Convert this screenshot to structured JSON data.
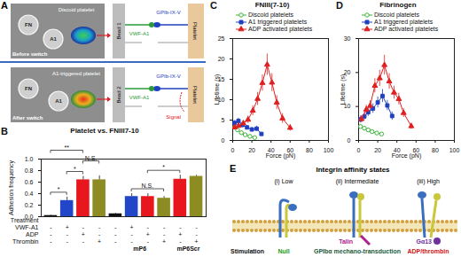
{
  "panels": {
    "A": {
      "panel_label": "A",
      "before": {
        "label": "Before switch",
        "beads": [
          "FN",
          "A1"
        ],
        "cell": "Discoid platelet",
        "schematic": {
          "bead": "Bead 1",
          "receptor": "GPIb-IX-V",
          "ligand": "VWF-A1",
          "cell": "Platelet"
        }
      },
      "after": {
        "label": "After switch",
        "beads": [
          "FN",
          "A1"
        ],
        "cell": "A1-triggered platelet",
        "schematic": {
          "bead": "Bead 2",
          "receptor": "GPIb-IX-V",
          "ligand": "VWF-A1",
          "cell": "Platelet",
          "signal": "Signal"
        }
      }
    },
    "E": {
      "panel_label": "E",
      "title": "Integrin affinity states",
      "stimulation_label": "Stimulation",
      "states": [
        {
          "label": "(i) Low",
          "stimulation": "Null",
          "color": "#1a9a1a"
        },
        {
          "label": "(ii) Intermediate",
          "stimulation": "GPIbα mechano-transduction",
          "color": "#1d5a3c",
          "adaptor": "Talin"
        },
        {
          "label": "(iii) High",
          "stimulation": "ADP/thrombin",
          "color": "#d01515",
          "adaptor": "Gα13"
        }
      ]
    }
  },
  "chart_data": [
    {
      "panel_label": "B",
      "type": "bar",
      "title": "Platelet vs. FNIII7-10",
      "ylabel": "Adhesion frequency",
      "categories": [
        null,
        null,
        null,
        null,
        null,
        null,
        null,
        null,
        null,
        null
      ],
      "values": [
        0.02,
        0.28,
        0.64,
        0.64,
        0.05,
        0.35,
        0.35,
        0.32,
        0.65,
        0.7
      ],
      "errors": [
        0.01,
        0.06,
        0.06,
        0.07,
        0.01,
        0.05,
        0.05,
        0.03,
        0.07,
        0.02
      ],
      "colors": [
        "#111111",
        "#2146c7",
        "#e8161d",
        "#8c8c23",
        "#111111",
        "#2146c7",
        "#e8161d",
        "#8c8c23",
        "#e8161d",
        "#8c8c23"
      ],
      "ylim": [
        0,
        1
      ],
      "yticks": [
        {
          "value": 0,
          "label": "0.0"
        },
        0.2,
        0.4,
        0.6,
        0.8,
        {
          "value": 1,
          "label": "1.0"
        }
      ],
      "grid": false,
      "treatment_header": "Treatment",
      "treatments": [
        {
          "name": "VWF-A1",
          "signs": [
            "-",
            "+",
            "-",
            "-",
            "-",
            "+",
            "-",
            "-",
            "-",
            "-"
          ]
        },
        {
          "name": "ADP",
          "signs": [
            "-",
            "-",
            "+",
            "-",
            "-",
            "-",
            "+",
            "-",
            "+",
            "-"
          ]
        },
        {
          "name": "Thrombin",
          "signs": [
            "-",
            "-",
            "-",
            "+",
            "-",
            "-",
            "-",
            "+",
            "-",
            "+"
          ]
        }
      ],
      "groups": [
        {
          "label": "mP6",
          "start": 4,
          "end": 7
        },
        {
          "label": "mP6Scr",
          "start": 8,
          "end": 9
        }
      ],
      "annotations": [
        {
          "text": "*",
          "bars": [
            0,
            1
          ]
        },
        {
          "text": "**",
          "bars": [
            0,
            2
          ]
        },
        {
          "text": "*",
          "bars": [
            1,
            2
          ]
        },
        {
          "text": "N.S.",
          "bars": [
            2,
            3
          ]
        },
        {
          "text": "N.S.",
          "bars": [
            5,
            7
          ]
        },
        {
          "text": "*",
          "bars": [
            6,
            8
          ]
        }
      ]
    },
    {
      "panel_label": "C",
      "type": "line",
      "title": "FNIII(7-10)",
      "xlabel": "Force (pN)",
      "ylabel": "Lifetime (s)",
      "xlim": [
        0,
        100
      ],
      "xticks": [
        0,
        20,
        40,
        60,
        80,
        100
      ],
      "ylim": [
        0,
        25
      ],
      "yticks": [
        0,
        5,
        10,
        15,
        20,
        25
      ],
      "grid": false,
      "legend": "top",
      "series": [
        {
          "name": "Discoid platelets",
          "color": "#3cb43c",
          "marker": "open_circle",
          "line_style": "solid",
          "x": [
            2,
            5,
            9,
            13,
            18,
            23
          ],
          "values": [
            3.3,
            2.6,
            1.9,
            1.4,
            1.0,
            0.7
          ],
          "errors": [
            0.4,
            0.3,
            0.3,
            0.2,
            0.2,
            0.2
          ]
        },
        {
          "name": "A1 triggered platelets",
          "color": "#2040c0",
          "marker": "square",
          "line_style": "solid",
          "x": [
            2,
            6,
            10,
            15,
            20,
            25,
            30
          ],
          "values": [
            4.3,
            4.8,
            3.8,
            3.2,
            2.7,
            2.9,
            1.6
          ],
          "errors": [
            0.6,
            0.7,
            0.6,
            0.5,
            0.5,
            0.6,
            0.4
          ]
        },
        {
          "name": "ADP activated platelets",
          "color": "#e02020",
          "marker": "triangle",
          "line_style": "solid",
          "x": [
            2,
            6,
            11,
            16,
            21,
            26,
            31,
            36,
            41,
            46,
            52,
            60
          ],
          "values": [
            3.2,
            3.6,
            4.2,
            5.1,
            7.3,
            10.2,
            14.1,
            18.6,
            14.2,
            9.3,
            5.4,
            3.1
          ],
          "errors": [
            0.5,
            0.6,
            0.7,
            0.9,
            1.2,
            1.6,
            2.0,
            2.6,
            2.2,
            1.7,
            1.2,
            0.8
          ]
        }
      ]
    },
    {
      "panel_label": "D",
      "type": "line",
      "title": "Fibrinogen",
      "xlabel": "Force (pN)",
      "ylabel": "Lifetime (s)",
      "xlim": [
        0,
        100
      ],
      "xticks": [
        0,
        20,
        40,
        60,
        80,
        100
      ],
      "ylim": [
        0,
        30
      ],
      "yticks": [
        0,
        10,
        20,
        30
      ],
      "grid": false,
      "legend": "top",
      "series": [
        {
          "name": "Discoid platelets",
          "color": "#3cb43c",
          "marker": "open_circle",
          "line_style": "solid",
          "x": [
            2,
            6,
            10,
            14,
            19,
            24
          ],
          "values": [
            4.1,
            3.6,
            3.1,
            2.6,
            2.2,
            1.9
          ],
          "errors": [
            0.5,
            0.4,
            0.4,
            0.3,
            0.3,
            0.3
          ]
        },
        {
          "name": "A1 triggered platelets",
          "color": "#2040c0",
          "marker": "square",
          "line_style": "solid",
          "x": [
            2,
            6,
            10,
            15,
            20,
            25,
            30,
            35
          ],
          "values": [
            6.2,
            7.1,
            8.3,
            9.4,
            11.2,
            13.1,
            10.3,
            7.2
          ],
          "errors": [
            1.0,
            1.1,
            1.2,
            1.4,
            1.6,
            1.9,
            1.5,
            1.2
          ]
        },
        {
          "name": "ADP activated platelets",
          "color": "#e02020",
          "marker": "triangle",
          "line_style": "solid",
          "x": [
            3,
            8,
            12,
            17,
            22,
            27,
            32,
            37,
            42,
            47,
            55
          ],
          "values": [
            6.3,
            9.1,
            10.2,
            16.1,
            18.3,
            22.2,
            17.4,
            14.1,
            12.2,
            8.1,
            4.2
          ],
          "errors": [
            1.0,
            1.3,
            1.5,
            2.1,
            2.4,
            2.9,
            2.3,
            1.9,
            1.7,
            1.3,
            0.9
          ]
        }
      ]
    }
  ]
}
